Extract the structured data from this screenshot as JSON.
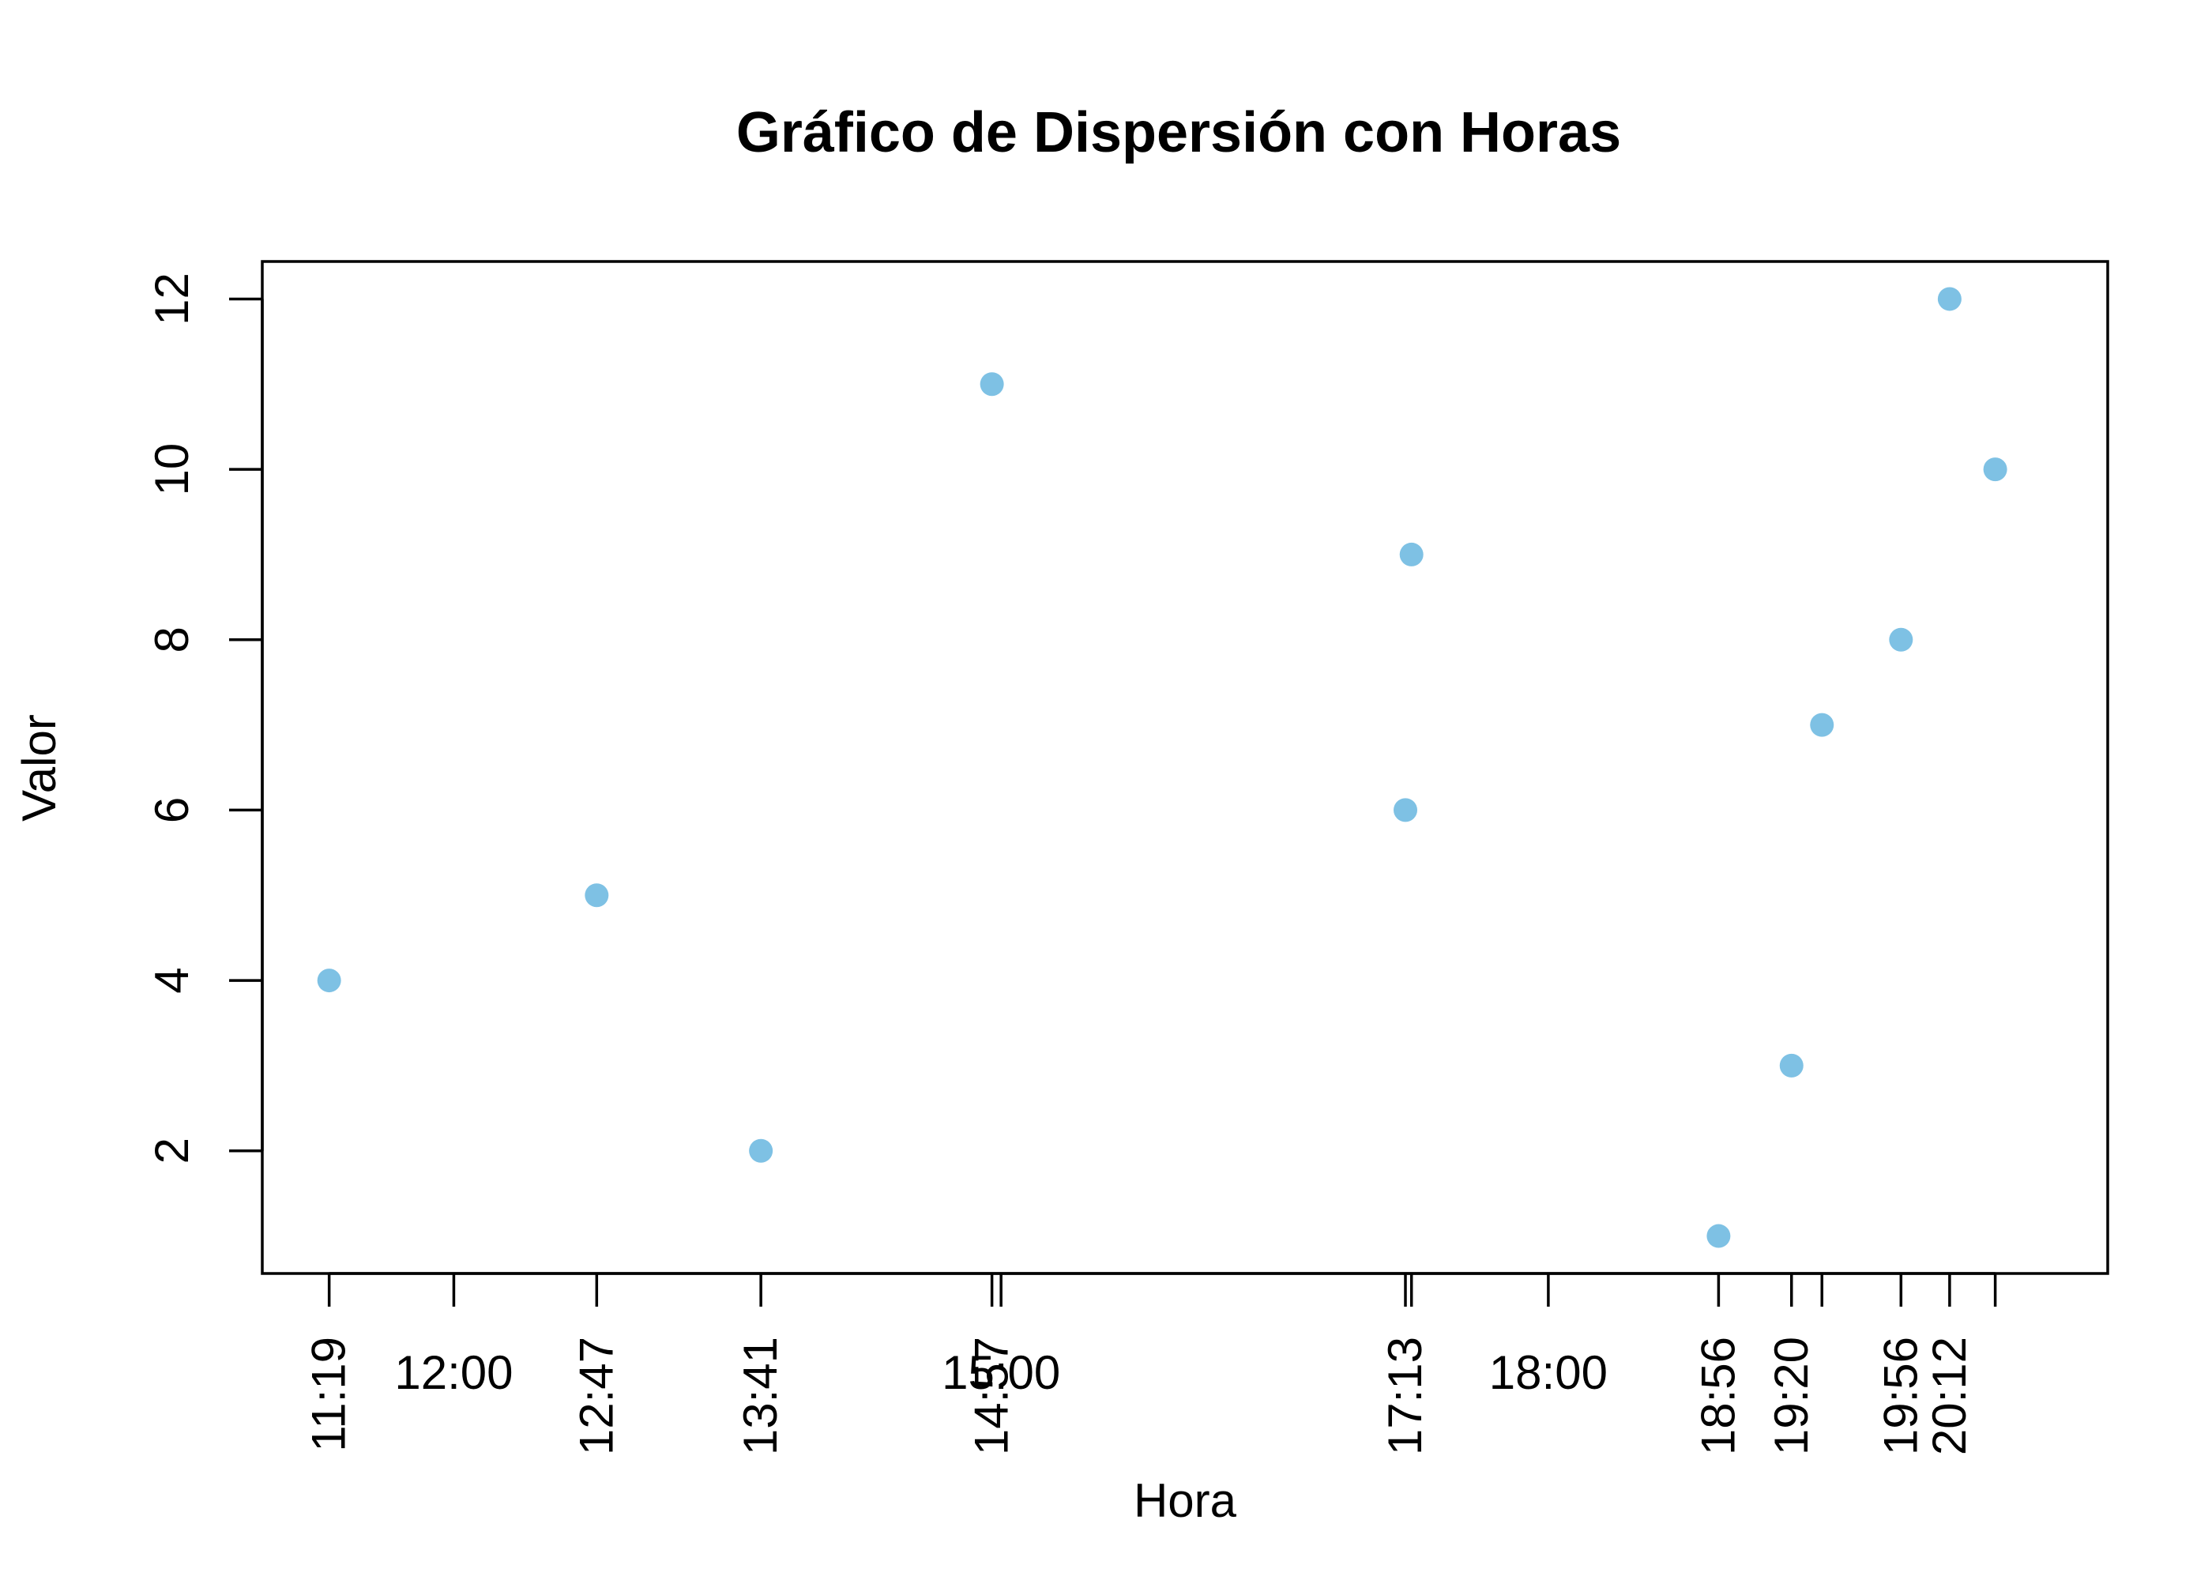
{
  "chart_data": {
    "type": "scatter",
    "title": "Gráfico de Dispersión con Horas",
    "xlabel": "Hora",
    "ylabel": "Valor",
    "x_axis_type": "time",
    "point_color": "#7ec1e4",
    "points": [
      {
        "x": "11:19",
        "y": 4
      },
      {
        "x": "12:47",
        "y": 5
      },
      {
        "x": "13:41",
        "y": 2
      },
      {
        "x": "14:57",
        "y": 11
      },
      {
        "x": "17:13",
        "y": 6
      },
      {
        "x": "17:15",
        "y": 9
      },
      {
        "x": "18:56",
        "y": 1
      },
      {
        "x": "19:20",
        "y": 3
      },
      {
        "x": "19:30",
        "y": 7
      },
      {
        "x": "19:56",
        "y": 8
      },
      {
        "x": "20:12",
        "y": 12
      },
      {
        "x": "20:27",
        "y": 10
      }
    ],
    "x_ticks_horizontal": [
      "12:00",
      "15:00",
      "18:00"
    ],
    "x_ticks_rotated": [
      "11:19",
      "12:47",
      "13:41",
      "14:57",
      "17:13",
      "18:56",
      "19:20",
      "19:56",
      "20:12"
    ],
    "extra_tick_marks": [
      "17:15",
      "19:30",
      "20:27"
    ],
    "y_ticks": [
      2,
      4,
      6,
      8,
      10,
      12
    ],
    "xlim": [
      "10:57",
      "21:04"
    ],
    "ylim": [
      0.56,
      12.44
    ],
    "grid": false,
    "legend": "none"
  }
}
